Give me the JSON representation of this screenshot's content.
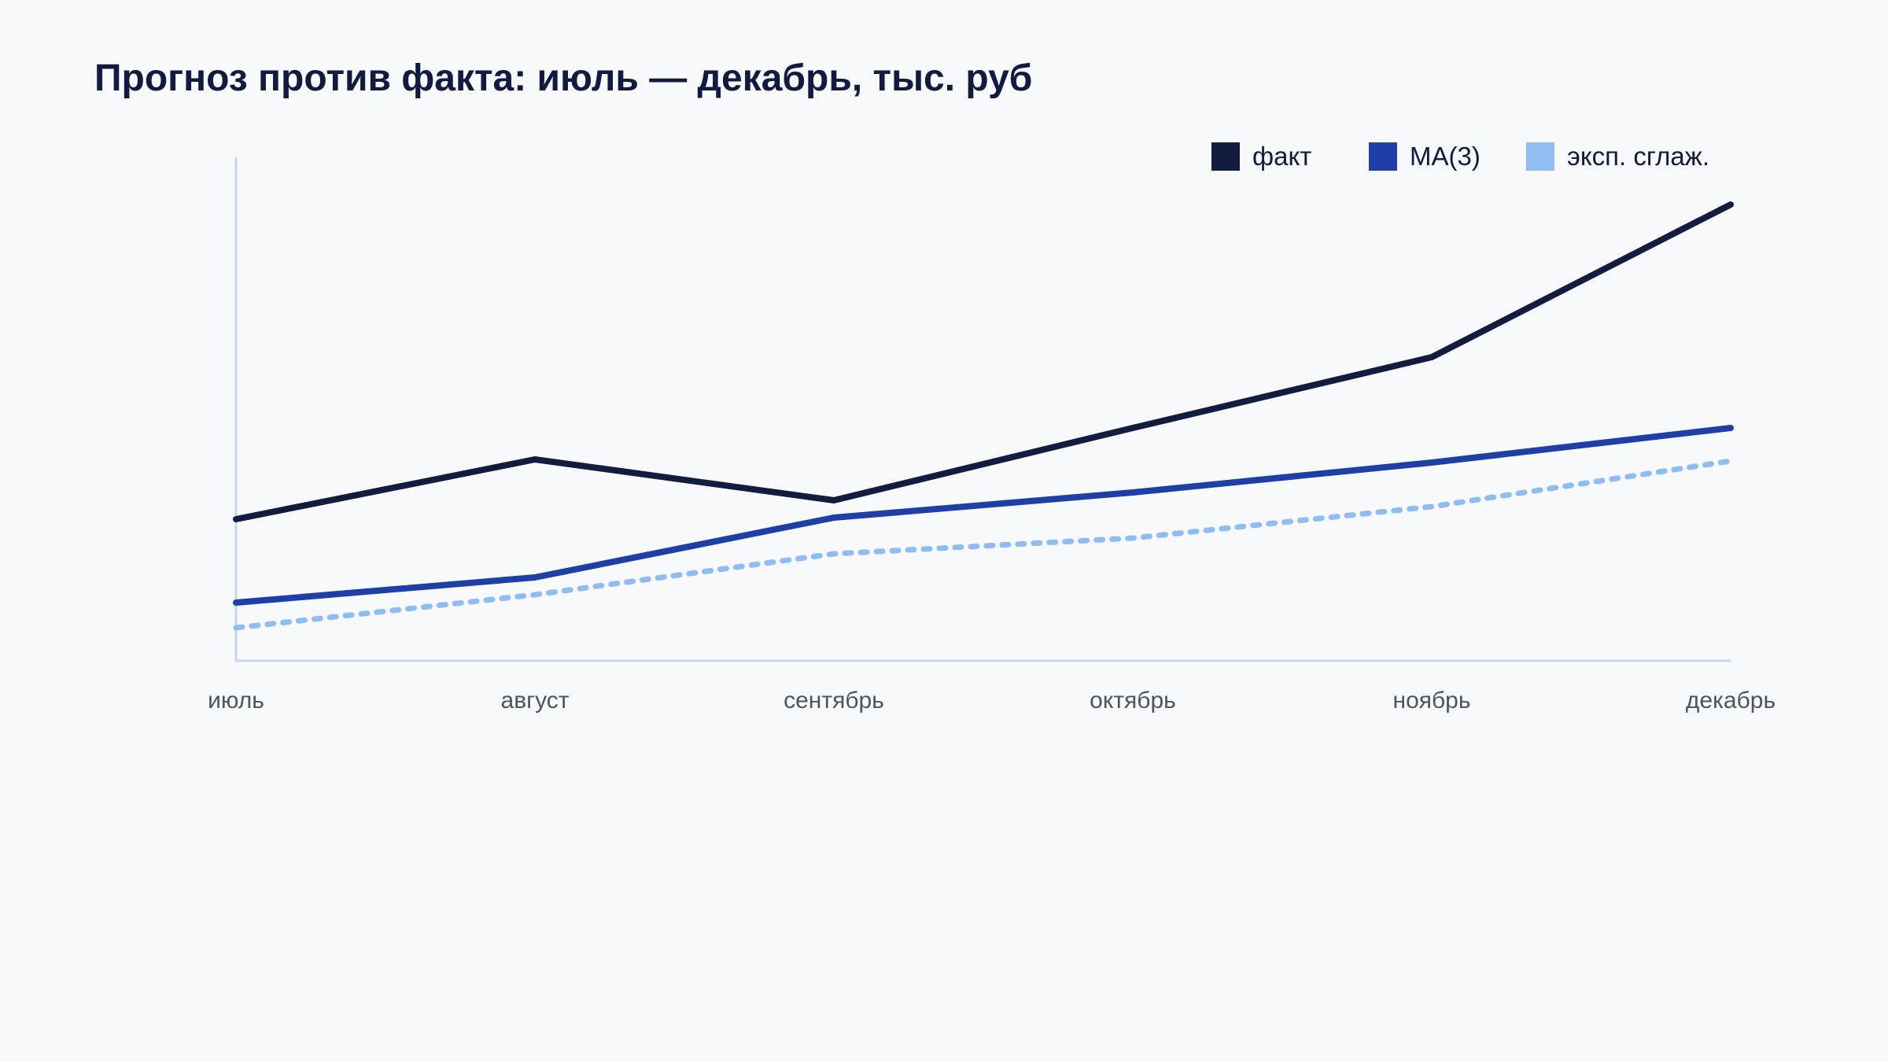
{
  "chart_data": {
    "type": "line",
    "title": "Прогноз против факта: июль — декабрь, тыс. руб",
    "xlabel": "",
    "ylabel": "",
    "categories": [
      "июль",
      "август",
      "сентябрь",
      "октябрь",
      "ноябрь",
      "декабрь"
    ],
    "ylim": [
      0,
      320
    ],
    "grid": false,
    "legend_position": "top-right",
    "series": [
      {
        "name": "факт",
        "values": [
          90,
          128,
          102,
          148,
          193,
          290
        ],
        "color": "#111c3f",
        "style": "solid"
      },
      {
        "name": "MA(3)",
        "values": [
          37,
          53,
          91,
          107,
          126,
          148
        ],
        "color": "#1f3fa8",
        "style": "solid"
      },
      {
        "name": "эксп. сглаж.",
        "values": [
          21,
          42,
          68,
          78,
          98,
          127
        ],
        "color": "#8fbcf2",
        "style": "dotted"
      }
    ]
  }
}
